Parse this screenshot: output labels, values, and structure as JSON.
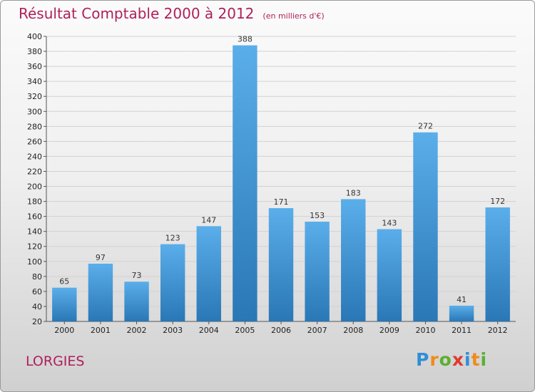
{
  "header": {
    "title": "Résultat Comptable 2000 à 2012",
    "unit": "(en milliers d'€)"
  },
  "commune": "LORGIES",
  "logo": {
    "letters": [
      {
        "char": "P",
        "color": "#2f8fd6"
      },
      {
        "char": "r",
        "color": "#f08a1c"
      },
      {
        "char": "o",
        "color": "#5ab031"
      },
      {
        "char": "x",
        "color": "#e03a2f"
      },
      {
        "char": "i",
        "color": "#2f8fd6"
      },
      {
        "char": "t",
        "color": "#f08a1c"
      },
      {
        "char": "i",
        "color": "#5ab031"
      }
    ]
  },
  "colors": {
    "title": "#b01f5a",
    "bar_light": "#5aaeea",
    "bar_dark": "#2a77b6",
    "grid": "#d2d2d2"
  },
  "chart_data": {
    "type": "bar",
    "title": "Résultat Comptable 2000 à 2012",
    "subtitle": "(en milliers d'€)",
    "xlabel": "",
    "ylabel": "",
    "categories": [
      "2000",
      "2001",
      "2002",
      "2003",
      "2004",
      "2005",
      "2006",
      "2007",
      "2008",
      "2009",
      "2010",
      "2011",
      "2012"
    ],
    "values": [
      65,
      97,
      73,
      123,
      147,
      388,
      171,
      153,
      183,
      143,
      272,
      41,
      172
    ],
    "ylim": [
      20,
      400
    ],
    "ytick_step": 20,
    "grid": true,
    "legend": "none"
  }
}
